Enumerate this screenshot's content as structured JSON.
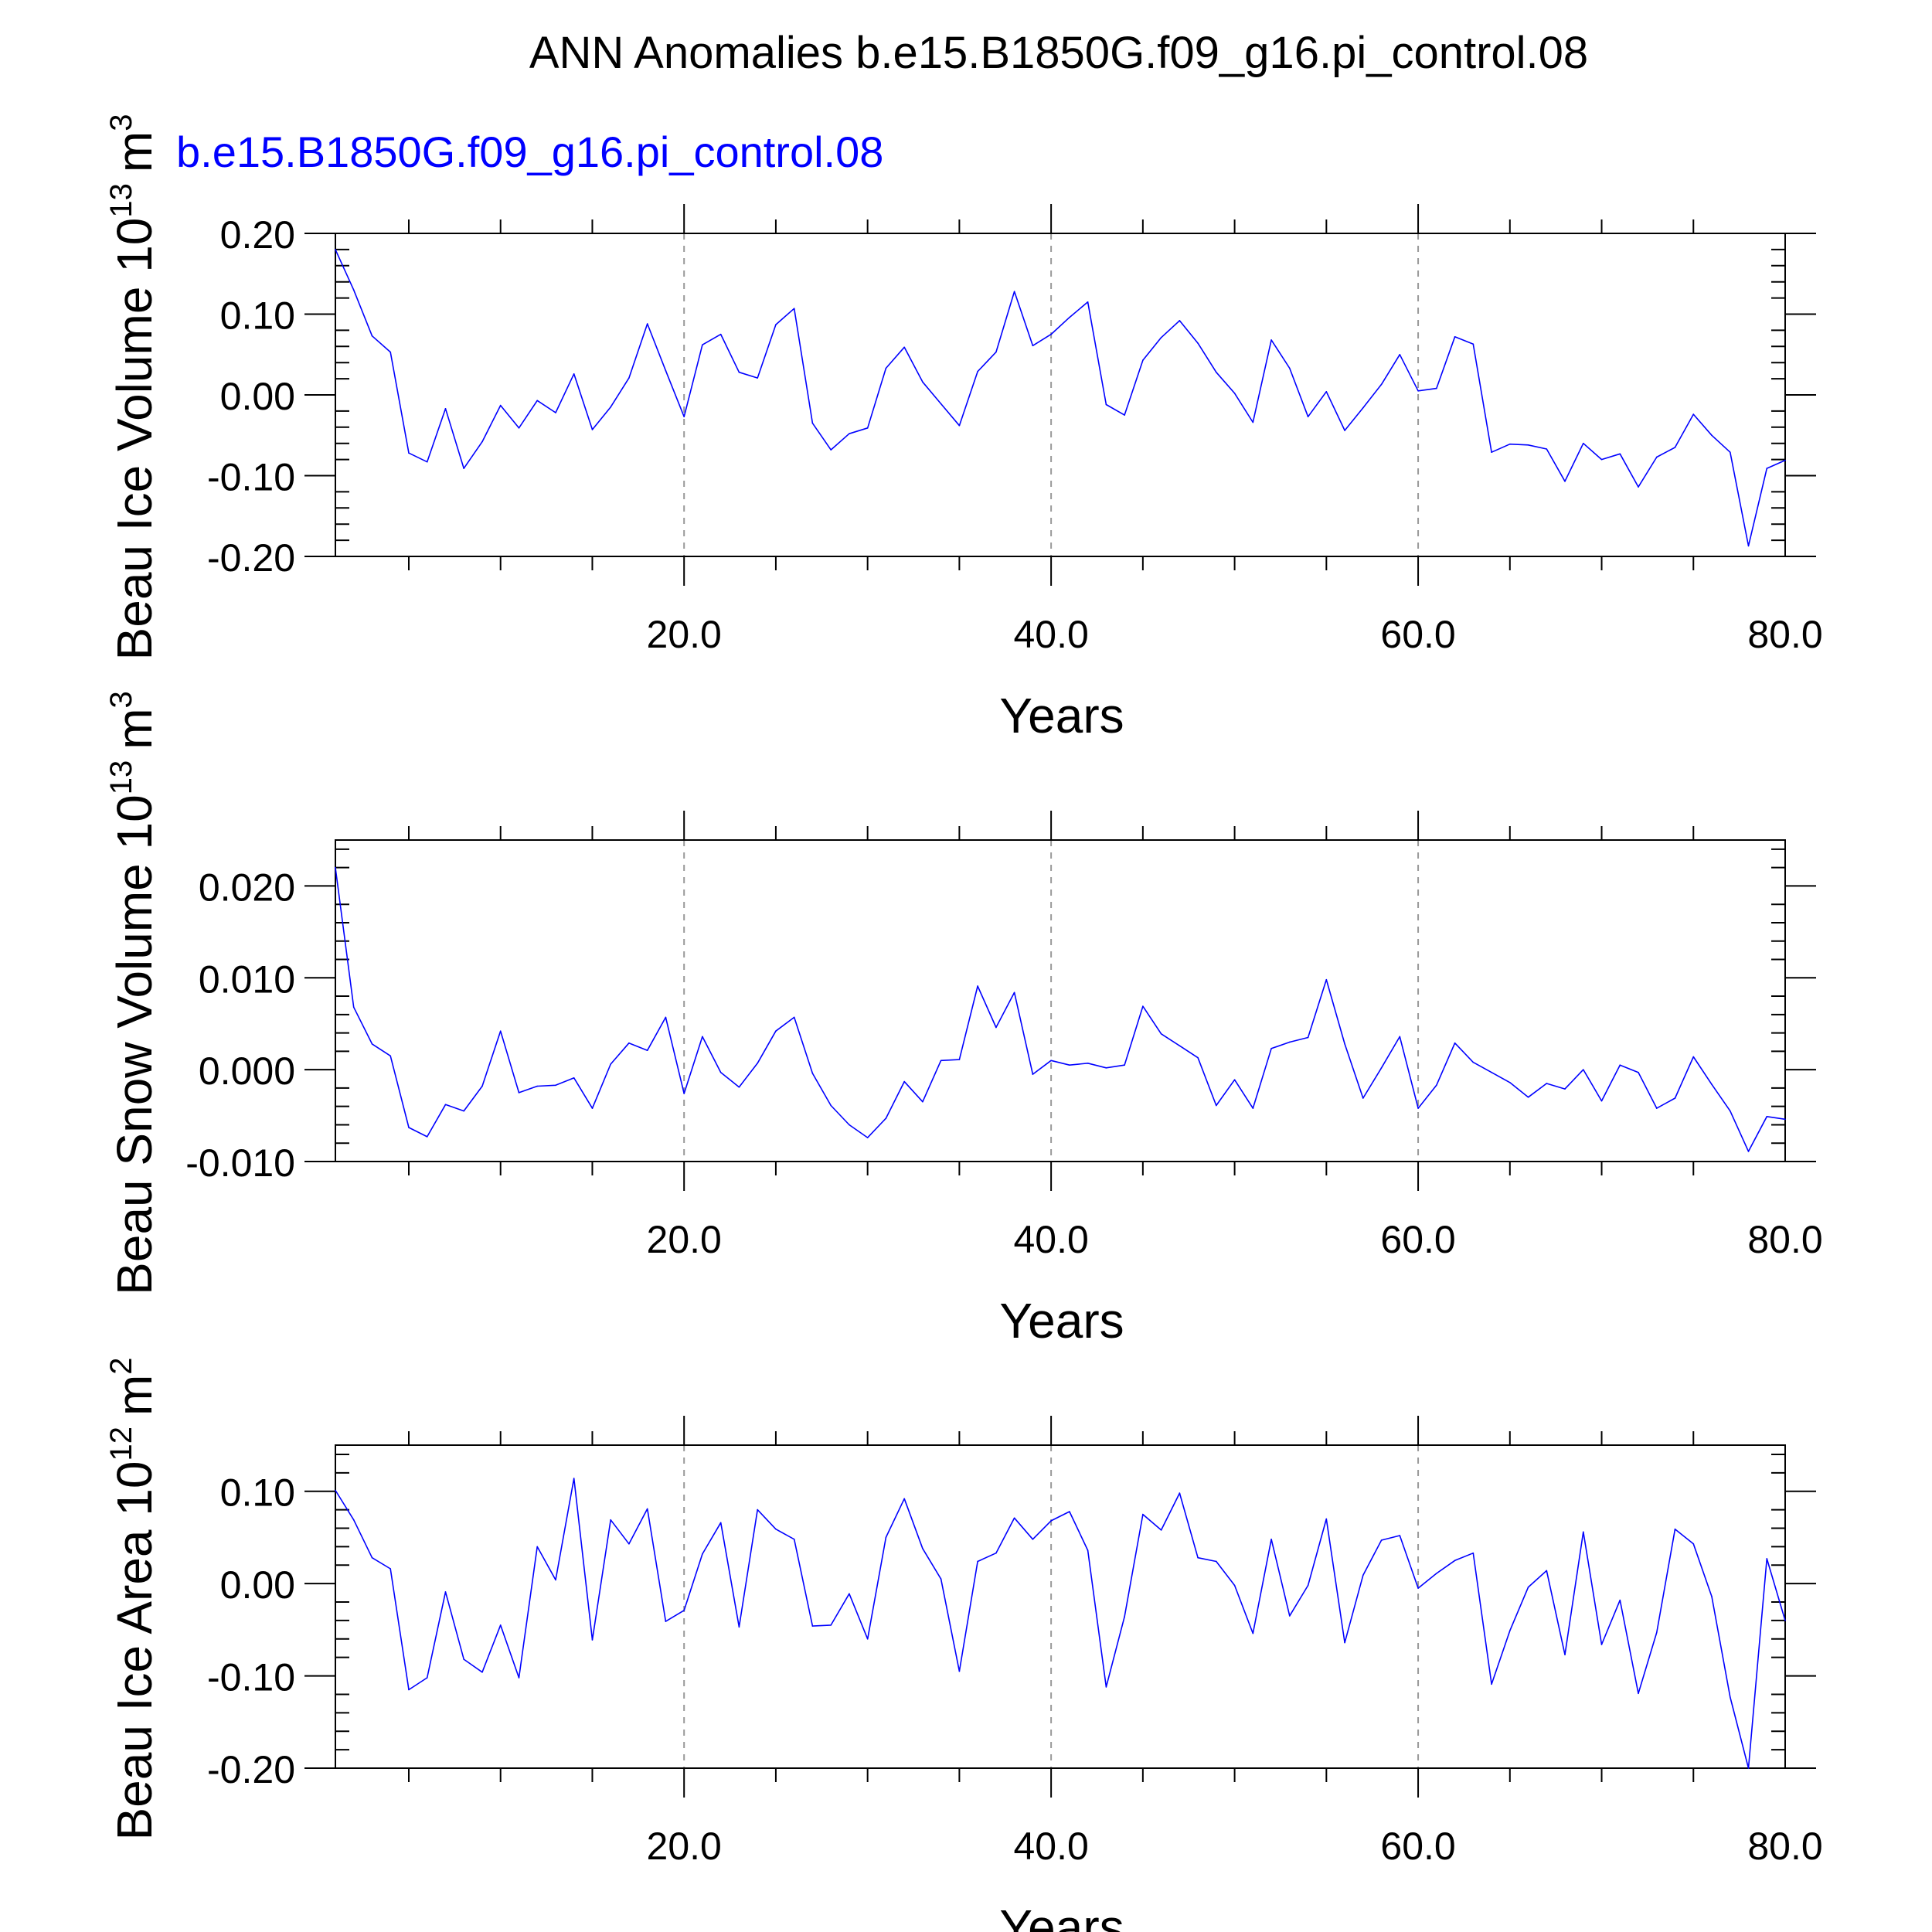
{
  "title": "ANN Anomalies b.e15.B1850G.f09_g16.pi_control.08",
  "case_label": "b.e15.B1850G.f09_g16.pi_control.08",
  "colors": {
    "line": "#0000ff",
    "case_label": "#0000ff",
    "text": "#000000",
    "grid": "#999999"
  },
  "chart_data": [
    {
      "type": "line",
      "ylabel": "Beau Ice Volume 10",
      "ylabel_exp": "13",
      "ylabel_unit": "m",
      "ylabel_unit_exp": "3",
      "xlabel": "Years",
      "xlim": [
        1,
        80
      ],
      "ylim": [
        -0.2,
        0.2
      ],
      "yticks": [
        -0.2,
        -0.1,
        0.0,
        0.1,
        0.2
      ],
      "ytick_labels": [
        "-0.20",
        "-0.10",
        "0.00",
        "0.10",
        "0.20"
      ],
      "xticks": [
        20,
        40,
        60,
        80
      ],
      "xtick_labels": [
        "20.0",
        "40.0",
        "60.0",
        "80.0"
      ],
      "grid_x": true,
      "series": [
        {
          "x": [
            1,
            2,
            3,
            4,
            5,
            6,
            7,
            8,
            9,
            10,
            11,
            12,
            13,
            14,
            15,
            16,
            17,
            18,
            19,
            20,
            21,
            22,
            23,
            24,
            25,
            26,
            27,
            28,
            29,
            30,
            31,
            32,
            33,
            34,
            35,
            36,
            37,
            38,
            39,
            40,
            41,
            42,
            43,
            44,
            45,
            46,
            47,
            48,
            49,
            50,
            51,
            52,
            53,
            54,
            55,
            56,
            57,
            58,
            59,
            60,
            61,
            62,
            63,
            64,
            65,
            66,
            67,
            68,
            69,
            70,
            71,
            72,
            73,
            74,
            75,
            76,
            77,
            78,
            79,
            80
          ],
          "values": [
            0.18,
            0.13,
            0.073,
            0.053,
            -0.072,
            -0.083,
            -0.017,
            -0.091,
            -0.058,
            -0.013,
            -0.041,
            -0.007,
            -0.022,
            0.026,
            -0.043,
            -0.015,
            0.021,
            0.088,
            0.03,
            -0.027,
            0.062,
            0.075,
            0.028,
            0.021,
            0.087,
            0.107,
            -0.035,
            -0.068,
            -0.048,
            -0.041,
            0.033,
            0.059,
            0.016,
            -0.011,
            -0.038,
            0.029,
            0.053,
            0.128,
            0.061,
            0.075,
            0.096,
            0.115,
            -0.012,
            -0.025,
            0.043,
            0.071,
            0.092,
            0.064,
            0.028,
            0.002,
            -0.034,
            0.068,
            0.033,
            -0.027,
            0.004,
            -0.044,
            -0.016,
            0.013,
            0.05,
            0.005,
            0.008,
            0.072,
            0.063,
            -0.071,
            -0.061,
            -0.062,
            -0.067,
            -0.107,
            -0.06,
            -0.08,
            -0.073,
            -0.114,
            -0.077,
            -0.065,
            -0.024,
            -0.05,
            -0.071,
            -0.187,
            -0.091,
            -0.081
          ]
        }
      ]
    },
    {
      "type": "line",
      "ylabel": "Beau Snow Volume 10",
      "ylabel_exp": "13",
      "ylabel_unit": "m",
      "ylabel_unit_exp": "3",
      "xlabel": "Years",
      "xlim": [
        1,
        80
      ],
      "ylim": [
        -0.01,
        0.025
      ],
      "yticks": [
        -0.01,
        0.0,
        0.01,
        0.02
      ],
      "ytick_labels": [
        "-0.010",
        "0.000",
        "0.010",
        "0.020"
      ],
      "xticks": [
        20,
        40,
        60,
        80
      ],
      "xtick_labels": [
        "20.0",
        "40.0",
        "60.0",
        "80.0"
      ],
      "grid_x": true,
      "series": [
        {
          "x": [
            1,
            2,
            3,
            4,
            5,
            6,
            7,
            8,
            9,
            10,
            11,
            12,
            13,
            14,
            15,
            16,
            17,
            18,
            19,
            20,
            21,
            22,
            23,
            24,
            25,
            26,
            27,
            28,
            29,
            30,
            31,
            32,
            33,
            34,
            35,
            36,
            37,
            38,
            39,
            40,
            41,
            42,
            43,
            44,
            45,
            46,
            47,
            48,
            49,
            50,
            51,
            52,
            53,
            54,
            55,
            56,
            57,
            58,
            59,
            60,
            61,
            62,
            63,
            64,
            65,
            66,
            67,
            68,
            69,
            70,
            71,
            72,
            73,
            74,
            75,
            76,
            77,
            78,
            79,
            80
          ],
          "values": [
            0.022,
            0.0068,
            0.0028,
            0.0015,
            -0.0063,
            -0.0073,
            -0.0038,
            -0.0045,
            -0.0018,
            0.0042,
            -0.0025,
            -0.0018,
            -0.0017,
            -0.0009,
            -0.0042,
            0.0006,
            0.0029,
            0.0021,
            0.0057,
            -0.0026,
            0.0036,
            -0.0003,
            -0.0019,
            0.0007,
            0.0042,
            0.0057,
            -0.0004,
            -0.0039,
            -0.006,
            -0.0074,
            -0.0053,
            -0.0013,
            -0.0035,
            0.001,
            0.0011,
            0.0091,
            0.0046,
            0.0084,
            -0.0005,
            0.001,
            0.0005,
            0.0007,
            0.0002,
            0.0005,
            0.0069,
            0.0039,
            0.0026,
            0.0013,
            -0.0039,
            -0.0011,
            -0.0042,
            0.0023,
            0.003,
            0.0035,
            0.0098,
            0.0028,
            -0.0031,
            0.0002,
            0.0036,
            -0.0042,
            -0.0017,
            0.0029,
            0.0008,
            -0.0003,
            -0.0014,
            -0.003,
            -0.0015,
            -0.0021,
            0.0,
            -0.0034,
            0.0005,
            -0.0003,
            -0.0042,
            -0.0031,
            0.0014,
            -0.0016,
            -0.0045,
            -0.0089,
            -0.0051,
            -0.0054
          ]
        }
      ]
    },
    {
      "type": "line",
      "ylabel": "Beau Ice Area 10",
      "ylabel_exp": "12",
      "ylabel_unit": "m",
      "ylabel_unit_exp": "2",
      "xlabel": "Years",
      "xlim": [
        1,
        80
      ],
      "ylim": [
        -0.2,
        0.15
      ],
      "yticks": [
        -0.2,
        -0.1,
        0.0,
        0.1
      ],
      "ytick_labels": [
        "-0.20",
        "-0.10",
        "0.00",
        "0.10"
      ],
      "xticks": [
        20,
        40,
        60,
        80
      ],
      "xtick_labels": [
        "20.0",
        "40.0",
        "60.0",
        "80.0"
      ],
      "grid_x": true,
      "series": [
        {
          "x": [
            1,
            2,
            3,
            4,
            5,
            6,
            7,
            8,
            9,
            10,
            11,
            12,
            13,
            14,
            15,
            16,
            17,
            18,
            19,
            20,
            21,
            22,
            23,
            24,
            25,
            26,
            27,
            28,
            29,
            30,
            31,
            32,
            33,
            34,
            35,
            36,
            37,
            38,
            39,
            40,
            41,
            42,
            43,
            44,
            45,
            46,
            47,
            48,
            49,
            50,
            51,
            52,
            53,
            54,
            55,
            56,
            57,
            58,
            59,
            60,
            61,
            62,
            63,
            64,
            65,
            66,
            67,
            68,
            69,
            70,
            71,
            72,
            73,
            74,
            75,
            76,
            77,
            78,
            79,
            80
          ],
          "values": [
            0.101,
            0.069,
            0.028,
            0.016,
            -0.115,
            -0.102,
            -0.009,
            -0.082,
            -0.096,
            -0.045,
            -0.102,
            0.04,
            0.004,
            0.114,
            -0.061,
            0.069,
            0.043,
            0.081,
            -0.041,
            -0.029,
            0.032,
            0.066,
            -0.047,
            0.08,
            0.059,
            0.048,
            -0.046,
            -0.045,
            -0.011,
            -0.06,
            0.05,
            0.092,
            0.038,
            0.005,
            -0.095,
            0.024,
            0.033,
            0.071,
            0.048,
            0.068,
            0.078,
            0.036,
            -0.112,
            -0.036,
            0.075,
            0.058,
            0.098,
            0.028,
            0.024,
            -0.002,
            -0.054,
            0.048,
            -0.035,
            -0.002,
            0.07,
            -0.064,
            0.009,
            0.047,
            0.052,
            -0.005,
            0.011,
            0.025,
            0.033,
            -0.109,
            -0.051,
            -0.004,
            0.014,
            -0.077,
            0.056,
            -0.066,
            -0.018,
            -0.119,
            -0.053,
            0.059,
            0.043,
            -0.014,
            -0.123,
            -0.2,
            0.027,
            -0.04
          ]
        }
      ]
    }
  ]
}
